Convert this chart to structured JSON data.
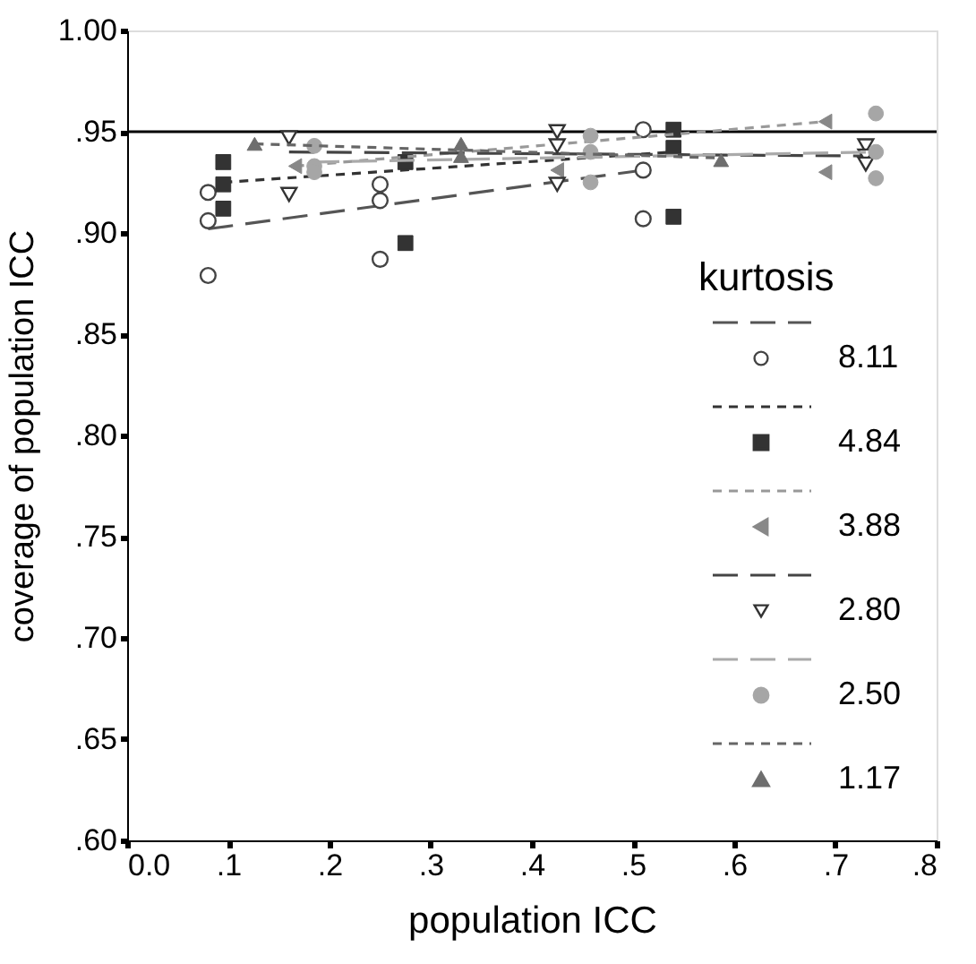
{
  "chart_data": {
    "type": "scatter",
    "xlabel": "population ICC",
    "ylabel": "coverage of population ICC",
    "legend_title": "kurtosis",
    "legend": "bottom right",
    "xlim": [
      0,
      0.8
    ],
    "ylim": [
      0.6,
      1.0
    ],
    "xticks": [
      {
        "value": 0,
        "label": "0.0"
      },
      {
        "value": 0.1,
        "label": ".1"
      },
      {
        "value": 0.2,
        "label": ".2"
      },
      {
        "value": 0.3,
        "label": ".3"
      },
      {
        "value": 0.4,
        "label": ".4"
      },
      {
        "value": 0.5,
        "label": ".5"
      },
      {
        "value": 0.6,
        "label": ".6"
      },
      {
        "value": 0.7,
        "label": ".7"
      },
      {
        "value": 0.8,
        "label": ".8"
      }
    ],
    "yticks": [
      {
        "value": 0.6,
        "label": ".60"
      },
      {
        "value": 0.65,
        "label": ".65"
      },
      {
        "value": 0.7,
        "label": ".70"
      },
      {
        "value": 0.75,
        "label": ".75"
      },
      {
        "value": 0.8,
        "label": ".80"
      },
      {
        "value": 0.85,
        "label": ".85"
      },
      {
        "value": 0.9,
        "label": ".90"
      },
      {
        "value": 0.95,
        "label": ".95"
      },
      {
        "value": 1.0,
        "label": "1.00"
      }
    ],
    "grid": false,
    "ref_lines": [
      {
        "axis": "y",
        "value": 0.95,
        "color": "#000000",
        "line_style": "solid"
      }
    ],
    "series": [
      {
        "type": "line",
        "color": "#555555",
        "line_style": "dashed",
        "x": [
          0.08,
          0.51
        ],
        "values": [
          0.902,
          0.931
        ]
      },
      {
        "name": "8.11",
        "marker": "circle",
        "color": "#444444",
        "x": [
          0.08,
          0.08,
          0.08,
          0.25,
          0.25,
          0.25,
          0.51,
          0.51,
          0.51
        ],
        "values": [
          0.92,
          0.906,
          0.879,
          0.924,
          0.916,
          0.887,
          0.951,
          0.931,
          0.907
        ]
      },
      {
        "type": "line",
        "color": "#333333",
        "line_style": "dotted",
        "x": [
          0.095,
          0.54
        ],
        "values": [
          0.925,
          0.94
        ]
      },
      {
        "name": "4.84",
        "marker": "square",
        "color": "#333333",
        "x": [
          0.095,
          0.095,
          0.095,
          0.275,
          0.275,
          0.54,
          0.54,
          0.54
        ],
        "values": [
          0.935,
          0.924,
          0.912,
          0.935,
          0.895,
          0.951,
          0.942,
          0.908
        ]
      },
      {
        "type": "line",
        "color": "#999999",
        "line_style": "dotted",
        "x": [
          0.166,
          0.69
        ],
        "values": [
          0.933,
          0.955
        ]
      },
      {
        "name": "3.88",
        "marker": "triangle-left",
        "color": "#888888",
        "x": [
          0.166,
          0.425,
          0.69,
          0.69
        ],
        "values": [
          0.933,
          0.931,
          0.955,
          0.93
        ]
      },
      {
        "type": "line",
        "color": "#444444",
        "line_style": "dashed",
        "x": [
          0.16,
          0.73
        ],
        "values": [
          0.94,
          0.938
        ]
      },
      {
        "name": "2.80",
        "marker": "triangle-down",
        "color": "#333333",
        "x": [
          0.16,
          0.16,
          0.425,
          0.425,
          0.425,
          0.73,
          0.73,
          0.73
        ],
        "values": [
          0.947,
          0.919,
          0.95,
          0.943,
          0.924,
          0.943,
          0.938,
          0.934
        ]
      },
      {
        "type": "line",
        "color": "#aaaaaa",
        "line_style": "dashed",
        "x": [
          0.185,
          0.74
        ],
        "values": [
          0.935,
          0.94
        ]
      },
      {
        "name": "2.50",
        "marker": "circle-filled",
        "color": "#a6a6a6",
        "x": [
          0.185,
          0.185,
          0.185,
          0.458,
          0.458,
          0.458,
          0.74,
          0.74,
          0.74
        ],
        "values": [
          0.943,
          0.933,
          0.93,
          0.948,
          0.94,
          0.925,
          0.959,
          0.94,
          0.927
        ]
      },
      {
        "type": "line",
        "color": "#666666",
        "line_style": "dotted",
        "x": [
          0.126,
          0.587
        ],
        "values": [
          0.944,
          0.937
        ]
      },
      {
        "name": "1.17",
        "marker": "triangle",
        "color": "#6e6e6e",
        "x": [
          0.126,
          0.33,
          0.33,
          0.587
        ],
        "values": [
          0.944,
          0.944,
          0.938,
          0.936
        ]
      }
    ]
  }
}
